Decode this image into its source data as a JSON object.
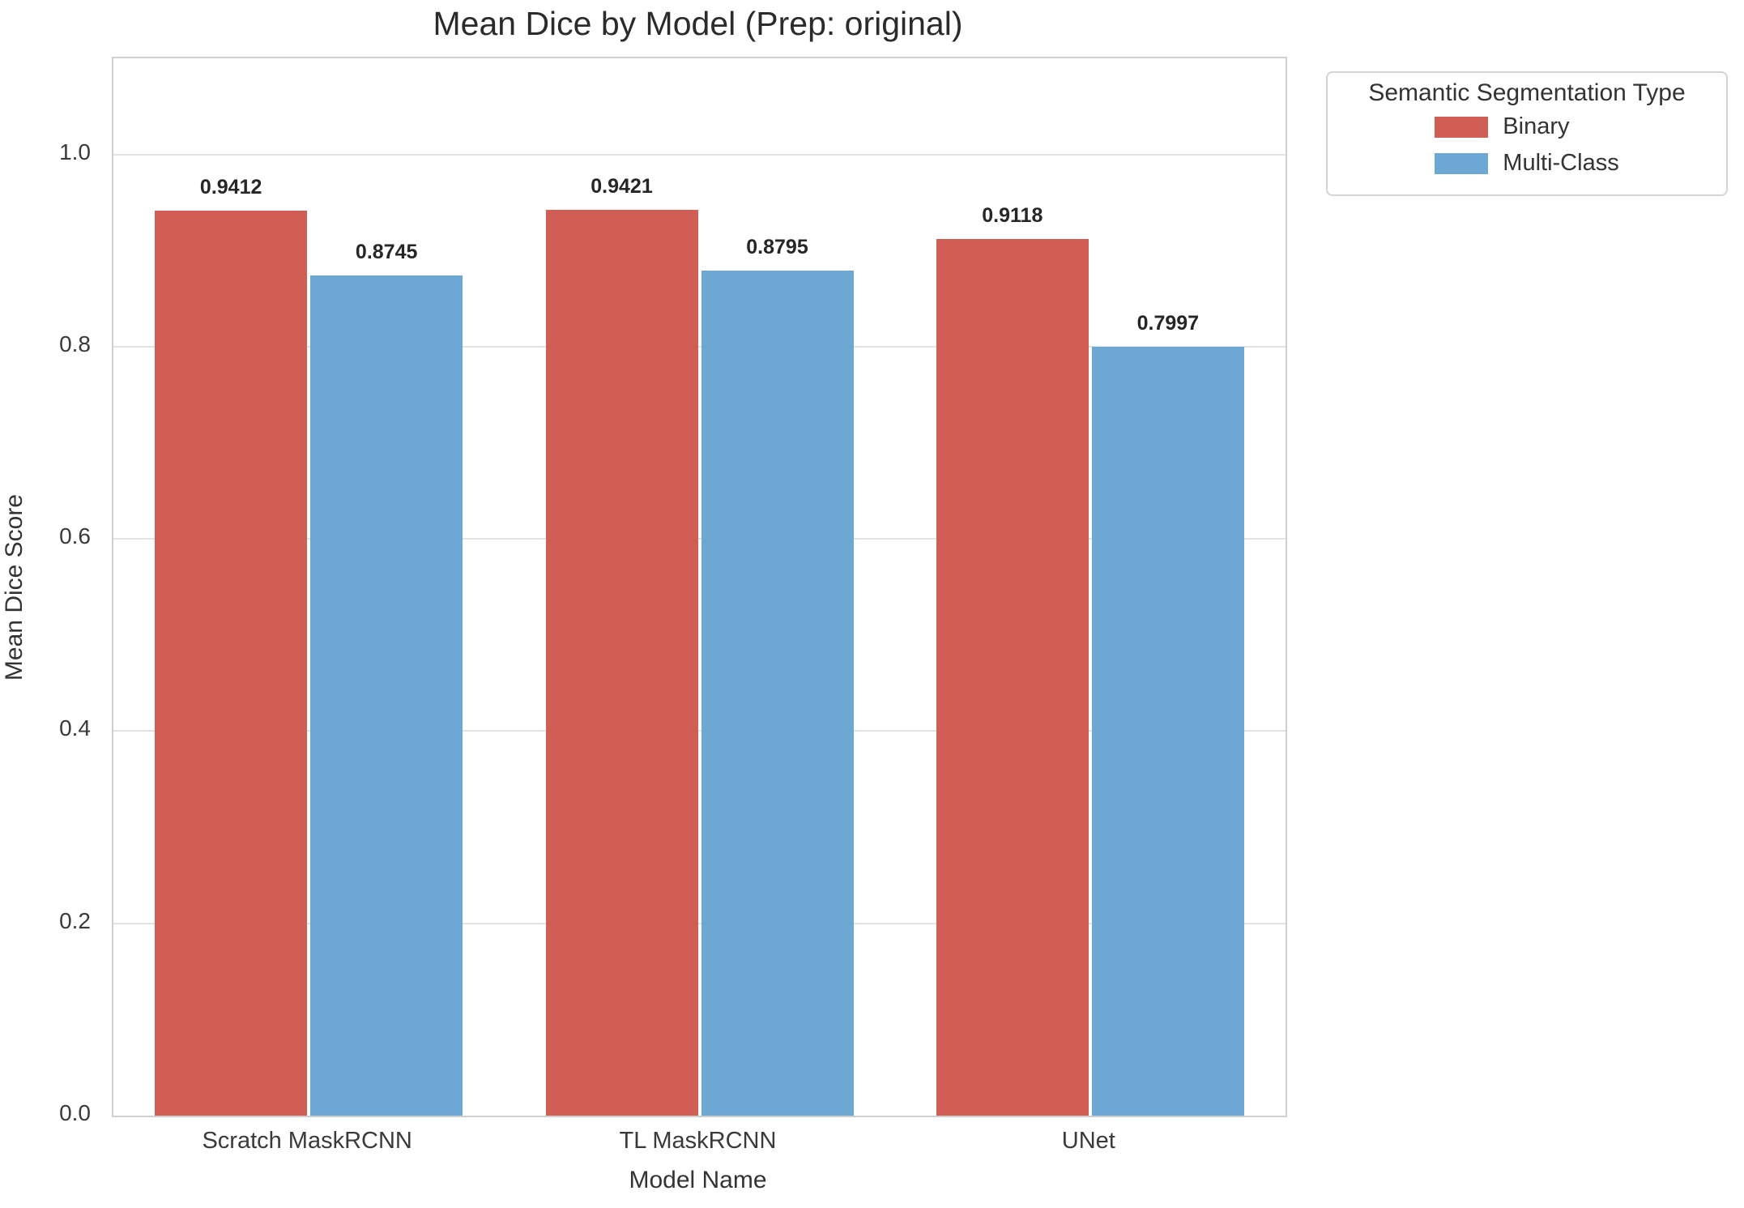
{
  "chart_data": {
    "type": "bar",
    "title": "Mean Dice by Model (Prep: original)",
    "xlabel": "Model Name",
    "ylabel": "Mean Dice Score",
    "categories": [
      "Scratch MaskRCNN",
      "TL MaskRCNN",
      "UNet"
    ],
    "series": [
      {
        "name": "Binary",
        "color": "#d15e54",
        "values": [
          0.9412,
          0.9421,
          0.9118
        ]
      },
      {
        "name": "Multi-Class",
        "color": "#6da8d4",
        "values": [
          0.8745,
          0.8795,
          0.7997
        ]
      }
    ],
    "bar_value_labels": {
      "Binary": [
        "0.9412",
        "0.9421",
        "0.9118"
      ],
      "Multi-Class": [
        "0.8745",
        "0.8795",
        "0.7997"
      ]
    },
    "yticks": [
      "0.0",
      "0.2",
      "0.4",
      "0.6",
      "0.8",
      "1.0"
    ],
    "ylim": [
      0,
      1.1
    ],
    "grid": true,
    "grid_color": "#e2e2e2",
    "legend": {
      "title": "Semantic Segmentation Type",
      "position": "outside-upper-right"
    }
  }
}
